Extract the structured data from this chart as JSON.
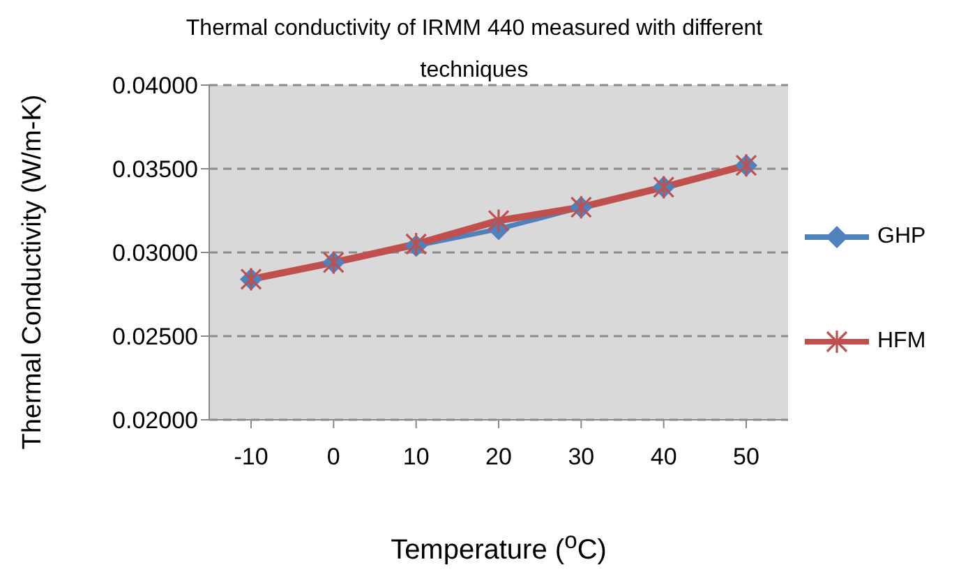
{
  "chart_data": {
    "type": "line",
    "title": "Thermal conductivity of IRMM 440 measured with different techniques",
    "xlabel": "Temperature ($^{o}$C)",
    "ylabel": "Thermal Conductivity (W/m-K)",
    "categories": [
      "-10",
      "0",
      "10",
      "20",
      "30",
      "40",
      "50"
    ],
    "series": [
      {
        "name": "GHP",
        "color": "#4f81bd",
        "marker": "diamond",
        "values": [
          0.0284,
          0.0294,
          0.0304,
          0.0314,
          0.0327,
          0.0339,
          0.0352
        ]
      },
      {
        "name": "HFM",
        "color": "#c0504d",
        "marker": "cross",
        "values": [
          0.0284,
          0.0294,
          0.0305,
          0.0319,
          0.0327,
          0.0339,
          0.0352
        ]
      }
    ],
    "ylim": [
      0.02,
      0.04
    ],
    "yticks": [
      {
        "value": 0.02,
        "label": "0.02000"
      },
      {
        "value": 0.025,
        "label": "0.02500"
      },
      {
        "value": 0.03,
        "label": "0.03000"
      },
      {
        "value": 0.035,
        "label": "0.03500"
      },
      {
        "value": 0.04,
        "label": "0.04000"
      }
    ],
    "grid": "y",
    "legend": "right",
    "line_style": "solid"
  }
}
